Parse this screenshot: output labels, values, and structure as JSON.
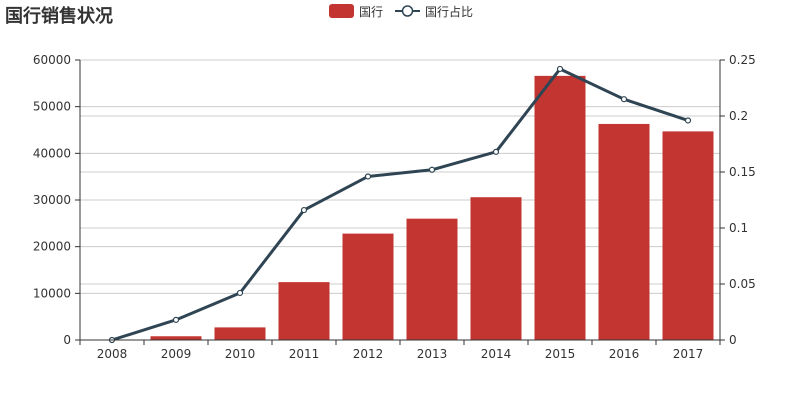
{
  "chart_data": {
    "type": "bar",
    "title": "国行销售状况",
    "categories": [
      "2008",
      "2009",
      "2010",
      "2011",
      "2012",
      "2013",
      "2014",
      "2015",
      "2016",
      "2017"
    ],
    "series": [
      {
        "name": "国行",
        "type": "bar",
        "axis": "left",
        "values": [
          0,
          800,
          2700,
          12400,
          22800,
          26000,
          30600,
          56600,
          46300,
          44700
        ]
      },
      {
        "name": "国行占比",
        "type": "line",
        "axis": "right",
        "values": [
          0.0,
          0.018,
          0.042,
          0.116,
          0.146,
          0.152,
          0.168,
          0.242,
          0.215,
          0.196
        ]
      }
    ],
    "y_left": {
      "min": 0,
      "max": 60000,
      "ticks": [
        "0",
        "10000",
        "20000",
        "30000",
        "40000",
        "50000",
        "60000"
      ]
    },
    "y_right": {
      "min": 0,
      "max": 0.25,
      "ticks": [
        "0",
        "0.05",
        "0.1",
        "0.15",
        "0.2",
        "0.25"
      ]
    },
    "grid": true,
    "legend_position": "top-center"
  },
  "colors": {
    "bar": "#c23531",
    "line": "#2f4554",
    "grid": "#cccccc",
    "axis": "#333333"
  },
  "legend": {
    "bar_label": "国行",
    "line_label": "国行占比"
  }
}
